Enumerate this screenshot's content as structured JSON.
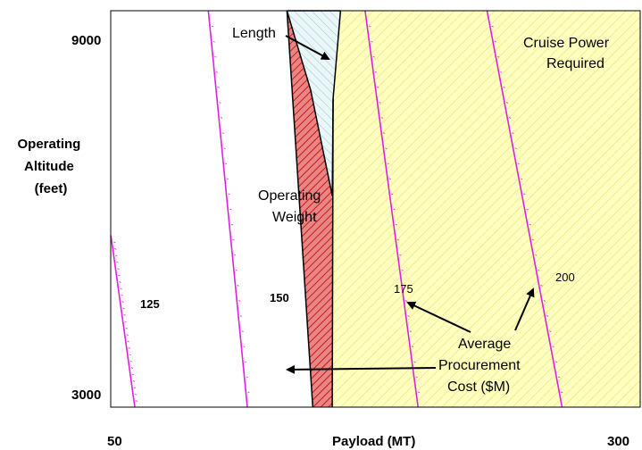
{
  "chart_data": {
    "type": "line",
    "title": "",
    "xlabel": "Payload (MT)",
    "ylabel": "Operating\nAltitude\n(feet)",
    "xlim": [
      50,
      300
    ],
    "ylim": [
      3000,
      9000
    ],
    "x_tick_labels": [
      "50",
      "300"
    ],
    "y_tick_labels": [
      "9000",
      "3000"
    ],
    "grid": false,
    "series": [
      {
        "name": "125",
        "x": [
          50.1,
          61.4
        ],
        "y": [
          5600,
          3000
        ],
        "color": "#e020e0"
      },
      {
        "name": "150",
        "x": [
          96.1,
          114.5
        ],
        "y": [
          9000,
          3000
        ],
        "color": "#e020e0"
      },
      {
        "name": "175",
        "x": [
          170.1,
          195.1
        ],
        "y": [
          9000,
          3000
        ],
        "color": "#e020e0"
      },
      {
        "name": "200",
        "x": [
          227.7,
          263.1
        ],
        "y": [
          9000,
          3000
        ],
        "color": "#e020e0"
      }
    ],
    "regions": [
      {
        "name": "Length",
        "fill": "#dbeef3",
        "points": [
          [
            133.2,
            9000
          ],
          [
            158.5,
            9000
          ],
          [
            155.0,
            7670
          ],
          [
            154.6,
            6200
          ],
          [
            144.4,
            7800
          ]
        ]
      },
      {
        "name": "Operating Weight",
        "fill": "#e98585",
        "points": [
          [
            133.2,
            9000
          ],
          [
            144.4,
            7800
          ],
          [
            154.6,
            6200
          ],
          [
            154.6,
            3000
          ],
          [
            145.4,
            3000
          ]
        ]
      },
      {
        "name": "Cruise Power Required",
        "fill": "#ffffc0",
        "points": [
          [
            158.5,
            9000
          ],
          [
            300,
            9000
          ],
          [
            300,
            3000
          ],
          [
            154.6,
            3000
          ],
          [
            155.0,
            7670
          ]
        ]
      }
    ],
    "annotations": {
      "length": "Length",
      "op_weight_1": "Operating",
      "op_weight_2": "Weight",
      "cruise_1": "Cruise Power",
      "cruise_2": "Required",
      "proc_1": "Average",
      "proc_2": "Procurement",
      "proc_3": "Cost ($M)"
    },
    "contour_labels": [
      "125",
      "150",
      "175",
      "200"
    ]
  },
  "colors": {
    "contour": "#e020e0",
    "length_fill": "#dbeef3",
    "weight_fill": "#e98585",
    "cruise_fill": "#ffffc0"
  }
}
